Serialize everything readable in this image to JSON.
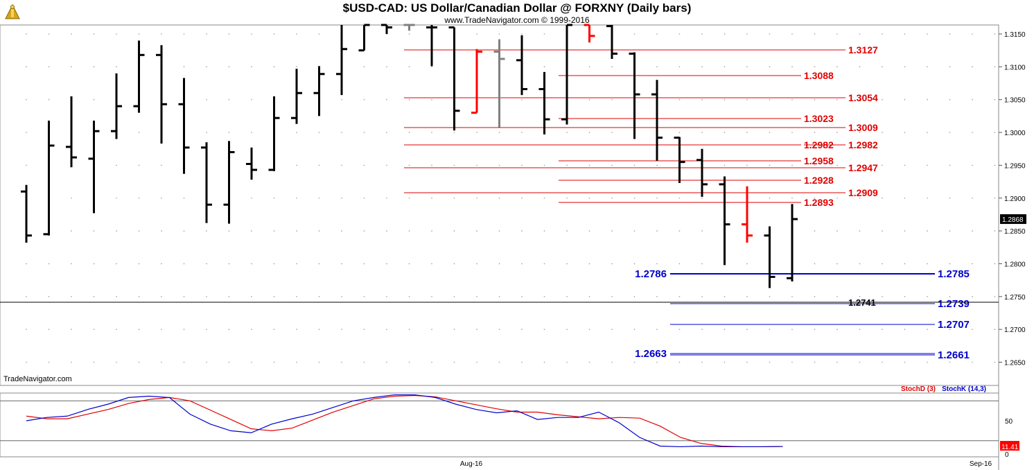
{
  "header": {
    "title": "$USD-CAD:  US Dollar/Canadian Dollar @ FORXNY  (Daily bars)",
    "subtitle": "www.TradeNavigator.com © 1999-2016",
    "watermark": "TradeNavigator.com",
    "logo_icon": "trade-navigator-logo-icon"
  },
  "colors": {
    "up_down_bar": "#000000",
    "highlight_bar": "#ff0000",
    "doji_bar": "#808080",
    "resistance": "#e00000",
    "support": "#0000cc",
    "stoch_d": "#e00000",
    "stoch_k": "#0000cc",
    "last_price_bg": "#000000",
    "stoch_value_bg": "#ff0000"
  },
  "chart_data": [
    {
      "type": "ohlc",
      "title": "$USD-CAD:  US Dollar/Canadian Dollar @ FORXNY  (Daily bars)",
      "ylim": [
        1.262,
        1.317
      ],
      "y_ticks": [
        "1.2650",
        "1.2700",
        "1.2750",
        "1.2800",
        "1.2850",
        "1.2900",
        "1.2950",
        "1.3000",
        "1.3050",
        "1.3100",
        "1.3150"
      ],
      "x_ticks": [
        "Aug-16",
        "Sep-16"
      ],
      "last_price": "1.2868",
      "grid": "dotted",
      "bars": [
        {
          "o": 1.291,
          "h": 1.292,
          "l": 1.2832,
          "c": 1.2843
        },
        {
          "o": 1.2845,
          "h": 1.3018,
          "l": 1.2843,
          "c": 1.298
        },
        {
          "o": 1.2978,
          "h": 1.3055,
          "l": 1.2947,
          "c": 1.2962
        },
        {
          "o": 1.296,
          "h": 1.3018,
          "l": 1.2877,
          "c": 1.3002
        },
        {
          "o": 1.3002,
          "h": 1.309,
          "l": 1.299,
          "c": 1.304
        },
        {
          "o": 1.304,
          "h": 1.314,
          "l": 1.303,
          "c": 1.3118
        },
        {
          "o": 1.3118,
          "h": 1.3133,
          "l": 1.2983,
          "c": 1.3043
        },
        {
          "o": 1.3043,
          "h": 1.3083,
          "l": 1.2937,
          "c": 1.2977
        },
        {
          "o": 1.2977,
          "h": 1.2985,
          "l": 1.2862,
          "c": 1.289
        },
        {
          "o": 1.289,
          "h": 1.2987,
          "l": 1.2861,
          "c": 1.297
        },
        {
          "o": 1.2952,
          "h": 1.2977,
          "l": 1.2928,
          "c": 1.2943
        },
        {
          "o": 1.2943,
          "h": 1.3055,
          "l": 1.2941,
          "c": 1.3022
        },
        {
          "o": 1.3022,
          "h": 1.3097,
          "l": 1.3013,
          "c": 1.306
        },
        {
          "o": 1.306,
          "h": 1.3101,
          "l": 1.3025,
          "c": 1.3089
        },
        {
          "o": 1.3089,
          "h": 1.3172,
          "l": 1.3057,
          "c": 1.3127
        },
        {
          "o": 1.3125,
          "h": 1.317,
          "l": 1.3125,
          "c": 1.317
        },
        {
          "o": 1.317,
          "h": 1.319,
          "l": 1.315,
          "c": 1.316
        },
        {
          "o": 1.317,
          "h": 1.3175,
          "l": 1.3155,
          "c": 1.3165,
          "color": "doji"
        },
        {
          "o": 1.316,
          "h": 1.319,
          "l": 1.3101,
          "c": 1.316
        },
        {
          "o": 1.316,
          "h": 1.316,
          "l": 1.3003,
          "c": 1.3033
        },
        {
          "o": 1.303,
          "h": 1.3127,
          "l": 1.303,
          "c": 1.3123,
          "color": "highlight"
        },
        {
          "o": 1.3123,
          "h": 1.3142,
          "l": 1.3008,
          "c": 1.3112,
          "color": "doji"
        },
        {
          "o": 1.311,
          "h": 1.3148,
          "l": 1.3057,
          "c": 1.3066
        },
        {
          "o": 1.3066,
          "h": 1.3092,
          "l": 1.2997,
          "c": 1.302
        },
        {
          "o": 1.302,
          "h": 1.3185,
          "l": 1.3012,
          "c": 1.317
        },
        {
          "o": 1.317,
          "h": 1.3175,
          "l": 1.3137,
          "c": 1.3147,
          "color": "highlight"
        },
        {
          "o": 1.3162,
          "h": 1.3172,
          "l": 1.3112,
          "c": 1.312
        },
        {
          "o": 1.312,
          "h": 1.3122,
          "l": 1.299,
          "c": 1.3058
        },
        {
          "o": 1.3058,
          "h": 1.308,
          "l": 1.2957,
          "c": 1.2992
        },
        {
          "o": 1.2992,
          "h": 1.2993,
          "l": 1.2923,
          "c": 1.2955
        },
        {
          "o": 1.2958,
          "h": 1.2975,
          "l": 1.2902,
          "c": 1.2921
        },
        {
          "o": 1.2921,
          "h": 1.2933,
          "l": 1.2798,
          "c": 1.286
        },
        {
          "o": 1.286,
          "h": 1.2918,
          "l": 1.2832,
          "c": 1.2843,
          "color": "highlight"
        },
        {
          "o": 1.2843,
          "h": 1.2857,
          "l": 1.2763,
          "c": 1.278
        },
        {
          "o": 1.2778,
          "h": 1.2891,
          "l": 1.2773,
          "c": 1.2868
        }
      ],
      "resistance_levels": [
        "1.3127",
        "1.3088",
        "1.3054",
        "1.3023",
        "1.3009",
        "1.2982",
        "1.2982",
        "1.2958",
        "1.2947",
        "1.2928",
        "1.2909",
        "1.2893"
      ],
      "support_levels": [
        "1.2786",
        "1.2785",
        "1.2739",
        "1.2707",
        "1.2663",
        "1.2661"
      ],
      "support_line_value": "1.2741"
    },
    {
      "type": "line",
      "title": "",
      "ylim": [
        0,
        100
      ],
      "y_ticks": [
        "0",
        "50"
      ],
      "reference_lines": [
        20,
        80
      ],
      "current_value": "11.41",
      "series": [
        {
          "name": "StochD (3)",
          "values": [
            57,
            53,
            53,
            60,
            67,
            76,
            82,
            85,
            80,
            66,
            52,
            38,
            35,
            39,
            51,
            63,
            73,
            83,
            87,
            88,
            86,
            80,
            74,
            68,
            63,
            63,
            59,
            56,
            53,
            55,
            54,
            42,
            25,
            16,
            12,
            11,
            11,
            11.41
          ]
        },
        {
          "name": "StochK (14,3)",
          "values": [
            50,
            55,
            57,
            67,
            75,
            85,
            87,
            85,
            60,
            45,
            35,
            32,
            45,
            53,
            60,
            70,
            80,
            85,
            89,
            89,
            85,
            75,
            67,
            62,
            65,
            52,
            55,
            55,
            63,
            47,
            25,
            12,
            11,
            12,
            11,
            11,
            11,
            11.41
          ]
        }
      ]
    }
  ]
}
